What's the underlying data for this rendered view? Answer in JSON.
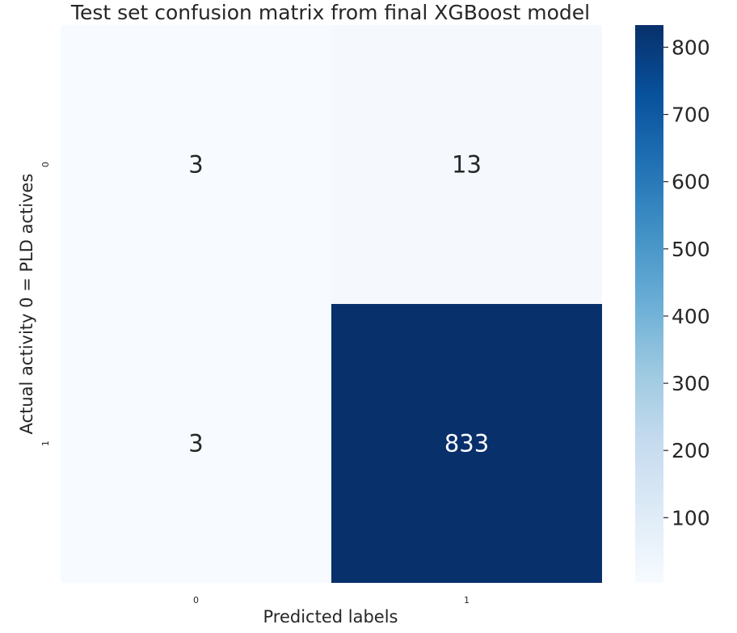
{
  "chart_data": {
    "type": "heatmap",
    "title": "Test set confusion matrix from final XGBoost model",
    "xlabel": "Predicted labels",
    "ylabel": "Actual activity 0 = PLD actives",
    "x_categories": [
      "0",
      "1"
    ],
    "y_categories": [
      "0",
      "1"
    ],
    "values": [
      [
        3,
        13
      ],
      [
        3,
        833
      ]
    ],
    "colormap": "Blues",
    "colorbar": {
      "min": 3,
      "max": 833,
      "ticks": [
        100,
        200,
        300,
        400,
        500,
        600,
        700,
        800
      ]
    },
    "grid": false,
    "legend": "colorbar-right"
  }
}
